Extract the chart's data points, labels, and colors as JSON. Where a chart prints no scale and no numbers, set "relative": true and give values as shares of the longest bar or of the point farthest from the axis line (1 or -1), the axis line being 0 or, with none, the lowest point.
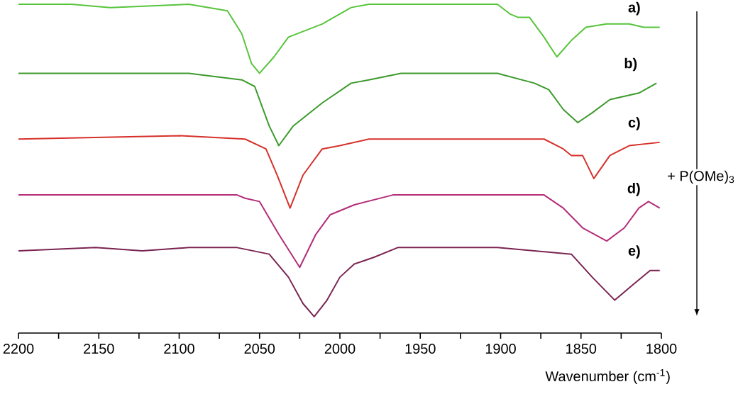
{
  "chart_data": {
    "type": "line",
    "relative": true,
    "xlabel": "Wavenumber (cm$^{-1}$)",
    "xlim": [
      2200,
      1800
    ],
    "xticks": [
      2200,
      {
        "value": 2175,
        "label": null
      },
      2150,
      {
        "value": 2125,
        "label": null
      },
      2100,
      {
        "value": 2075,
        "label": null
      },
      2050,
      {
        "value": 2025,
        "label": null
      },
      2000,
      {
        "value": 1975,
        "label": null
      },
      1950,
      {
        "value": 1925,
        "label": null
      },
      1900,
      {
        "value": 1875,
        "label": null
      },
      1850,
      {
        "value": 1825,
        "label": null
      },
      1800
    ],
    "tick_labels": "x",
    "annotations": [
      "+ P(OMe)$_{3}$"
    ],
    "series": [
      {
        "name": "a)",
        "color": "#58c43c",
        "x": [
          2200,
          2167,
          2143,
          2094,
          2070,
          2061,
          2055,
          2050,
          2041,
          2032,
          2011,
          1993,
          1982,
          1902,
          1894,
          1889,
          1882,
          1873,
          1865,
          1856,
          1847,
          1834,
          1820,
          1811,
          1801
        ],
        "values": [
          1.0,
          1.0,
          0.99,
          1.0,
          0.98,
          0.91,
          0.82,
          0.79,
          0.84,
          0.9,
          0.94,
          0.99,
          1.0,
          1.0,
          0.97,
          0.96,
          0.96,
          0.9,
          0.84,
          0.89,
          0.93,
          0.94,
          0.94,
          0.93,
          0.93
        ]
      },
      {
        "name": "b)",
        "color": "#3c9a2c",
        "x": [
          2200,
          2094,
          2061,
          2053,
          2044,
          2038,
          2029,
          2011,
          1993,
          1982,
          1962,
          1902,
          1879,
          1870,
          1861,
          1852,
          1843,
          1832,
          1814,
          1803
        ],
        "values": [
          0.79,
          0.79,
          0.77,
          0.75,
          0.63,
          0.57,
          0.63,
          0.7,
          0.76,
          0.77,
          0.79,
          0.79,
          0.76,
          0.74,
          0.68,
          0.64,
          0.67,
          0.71,
          0.73,
          0.76
        ]
      },
      {
        "name": "c)",
        "color": "#d6312b",
        "x": [
          2200,
          2099,
          2059,
          2046,
          2039,
          2031,
          2023,
          2011,
          2000,
          1982,
          1962,
          1873,
          1861,
          1856,
          1849,
          1842,
          1832,
          1820,
          1801
        ],
        "values": [
          0.59,
          0.6,
          0.59,
          0.56,
          0.48,
          0.38,
          0.48,
          0.56,
          0.57,
          0.59,
          0.59,
          0.59,
          0.56,
          0.54,
          0.54,
          0.47,
          0.54,
          0.57,
          0.58
        ]
      },
      {
        "name": "d)",
        "color": "#b42c78",
        "x": [
          2200,
          2143,
          2094,
          2064,
          2059,
          2050,
          2038,
          2025,
          2015,
          2006,
          1991,
          1967,
          1873,
          1861,
          1849,
          1834,
          1823,
          1814,
          1808,
          1801
        ],
        "values": [
          0.42,
          0.42,
          0.42,
          0.42,
          0.41,
          0.4,
          0.3,
          0.2,
          0.3,
          0.36,
          0.39,
          0.42,
          0.42,
          0.38,
          0.32,
          0.28,
          0.32,
          0.38,
          0.4,
          0.38
        ]
      },
      {
        "name": "e)",
        "color": "#7a2452",
        "x": [
          2200,
          2152,
          2123,
          2094,
          2064,
          2044,
          2032,
          2023,
          2016,
          2008,
          2000,
          1991,
          1979,
          1964,
          1902,
          1856,
          1843,
          1829,
          1817,
          1807,
          1801
        ],
        "values": [
          0.25,
          0.26,
          0.25,
          0.26,
          0.26,
          0.24,
          0.17,
          0.09,
          0.05,
          0.1,
          0.17,
          0.21,
          0.23,
          0.26,
          0.26,
          0.24,
          0.17,
          0.1,
          0.15,
          0.19,
          0.19
        ]
      }
    ]
  }
}
